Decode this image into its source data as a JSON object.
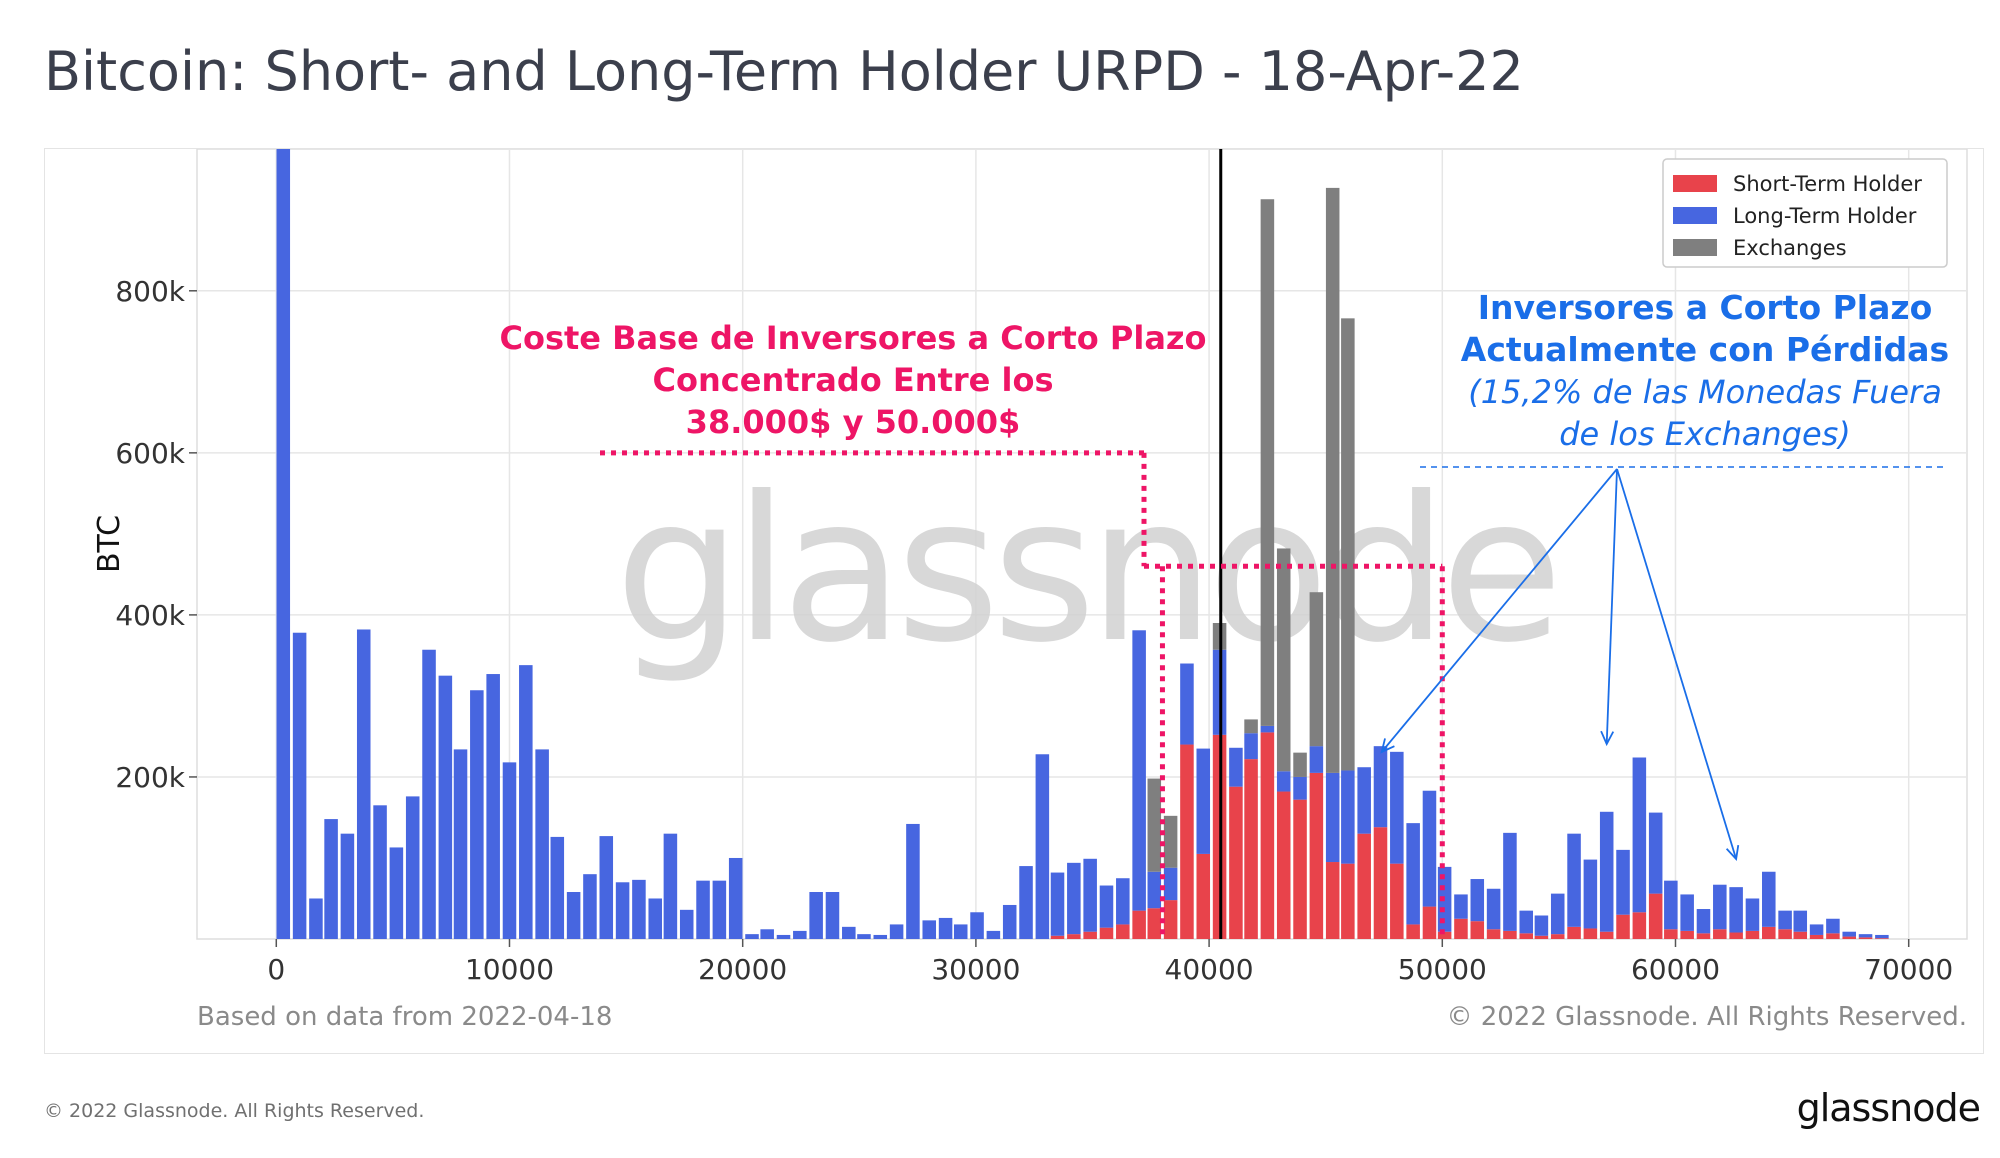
{
  "title": "Bitcoin: Short- and Long-Term Holder URPD - 18-Apr-22",
  "footer": {
    "copyright": "© 2022 Glassnode. All Rights Reserved.",
    "brand": "glassnode"
  },
  "colors": {
    "sth": "#e8434b",
    "lth": "#4766e0",
    "exchanges": "#7f7f7f",
    "pink": "#ee1566",
    "blue": "#1a6ee8",
    "grid": "#e6e6e6",
    "text": "#333333"
  },
  "chart_data": {
    "type": "bar",
    "stacked": true,
    "title": "Bitcoin: Short- and Long-Term Holder URPD - 18-Apr-22",
    "xlabel": "",
    "ylabel": "BTC",
    "xlim": [
      -3400,
      72500
    ],
    "ylim": [
      0,
      975000
    ],
    "x_ticks": [
      0,
      10000,
      20000,
      30000,
      40000,
      50000,
      60000,
      70000
    ],
    "y_ticks": [
      200000,
      400000,
      600000,
      800000
    ],
    "y_tick_labels": [
      "200k",
      "400k",
      "600k",
      "800k"
    ],
    "grid": true,
    "legend_position": "top-right",
    "watermark": "glassnode",
    "note_left": "Based on data from 2022-04-18",
    "note_right": "© 2022 Glassnode. All Rights Reserved.",
    "current_price": 40500,
    "bin_width": 675,
    "series": [
      {
        "name": "Short-Term Holder",
        "color": "#e8434b"
      },
      {
        "name": "Long-Term Holder",
        "color": "#4766e0"
      },
      {
        "name": "Exchanges",
        "color": "#7f7f7f"
      }
    ],
    "bins": [
      {
        "x": 300,
        "sth": 0,
        "lth": 975000,
        "exch": 0
      },
      {
        "x": 1000,
        "sth": 0,
        "lth": 378000,
        "exch": 0
      },
      {
        "x": 1700,
        "sth": 0,
        "lth": 50000,
        "exch": 0
      },
      {
        "x": 2350,
        "sth": 0,
        "lth": 148000,
        "exch": 0
      },
      {
        "x": 3050,
        "sth": 0,
        "lth": 130000,
        "exch": 0
      },
      {
        "x": 3750,
        "sth": 0,
        "lth": 382000,
        "exch": 0
      },
      {
        "x": 4450,
        "sth": 0,
        "lth": 165000,
        "exch": 0
      },
      {
        "x": 5150,
        "sth": 0,
        "lth": 113000,
        "exch": 0
      },
      {
        "x": 5850,
        "sth": 0,
        "lth": 176000,
        "exch": 0
      },
      {
        "x": 6550,
        "sth": 0,
        "lth": 357000,
        "exch": 0
      },
      {
        "x": 7250,
        "sth": 0,
        "lth": 325000,
        "exch": 0
      },
      {
        "x": 7900,
        "sth": 0,
        "lth": 234000,
        "exch": 0
      },
      {
        "x": 8600,
        "sth": 0,
        "lth": 307000,
        "exch": 0
      },
      {
        "x": 9300,
        "sth": 0,
        "lth": 327000,
        "exch": 0
      },
      {
        "x": 10000,
        "sth": 0,
        "lth": 218000,
        "exch": 0
      },
      {
        "x": 10700,
        "sth": 0,
        "lth": 338000,
        "exch": 0
      },
      {
        "x": 11400,
        "sth": 0,
        "lth": 234000,
        "exch": 0
      },
      {
        "x": 12050,
        "sth": 0,
        "lth": 126000,
        "exch": 0
      },
      {
        "x": 12750,
        "sth": 0,
        "lth": 58000,
        "exch": 0
      },
      {
        "x": 13450,
        "sth": 0,
        "lth": 80000,
        "exch": 0
      },
      {
        "x": 14150,
        "sth": 0,
        "lth": 127000,
        "exch": 0
      },
      {
        "x": 14850,
        "sth": 0,
        "lth": 70000,
        "exch": 0
      },
      {
        "x": 15550,
        "sth": 0,
        "lth": 73000,
        "exch": 0
      },
      {
        "x": 16250,
        "sth": 0,
        "lth": 50000,
        "exch": 0
      },
      {
        "x": 16900,
        "sth": 0,
        "lth": 130000,
        "exch": 0
      },
      {
        "x": 17600,
        "sth": 0,
        "lth": 36000,
        "exch": 0
      },
      {
        "x": 18300,
        "sth": 0,
        "lth": 72000,
        "exch": 0
      },
      {
        "x": 19000,
        "sth": 0,
        "lth": 72000,
        "exch": 0
      },
      {
        "x": 19700,
        "sth": 0,
        "lth": 100000,
        "exch": 0
      },
      {
        "x": 20400,
        "sth": 0,
        "lth": 6000,
        "exch": 0
      },
      {
        "x": 21050,
        "sth": 0,
        "lth": 12000,
        "exch": 0
      },
      {
        "x": 21750,
        "sth": 0,
        "lth": 5000,
        "exch": 0
      },
      {
        "x": 22450,
        "sth": 0,
        "lth": 10000,
        "exch": 0
      },
      {
        "x": 23150,
        "sth": 0,
        "lth": 58000,
        "exch": 0
      },
      {
        "x": 23850,
        "sth": 0,
        "lth": 58000,
        "exch": 0
      },
      {
        "x": 24550,
        "sth": 0,
        "lth": 15000,
        "exch": 0
      },
      {
        "x": 25200,
        "sth": 0,
        "lth": 6000,
        "exch": 0
      },
      {
        "x": 25900,
        "sth": 0,
        "lth": 5000,
        "exch": 0
      },
      {
        "x": 26600,
        "sth": 0,
        "lth": 18000,
        "exch": 0
      },
      {
        "x": 27300,
        "sth": 0,
        "lth": 142000,
        "exch": 0
      },
      {
        "x": 28000,
        "sth": 0,
        "lth": 23000,
        "exch": 0
      },
      {
        "x": 28700,
        "sth": 0,
        "lth": 26000,
        "exch": 0
      },
      {
        "x": 29350,
        "sth": 0,
        "lth": 18000,
        "exch": 0
      },
      {
        "x": 30050,
        "sth": 0,
        "lth": 33000,
        "exch": 0
      },
      {
        "x": 30750,
        "sth": 0,
        "lth": 10000,
        "exch": 0
      },
      {
        "x": 31450,
        "sth": 0,
        "lth": 42000,
        "exch": 0
      },
      {
        "x": 32150,
        "sth": 0,
        "lth": 90000,
        "exch": 0
      },
      {
        "x": 32850,
        "sth": 0,
        "lth": 228000,
        "exch": 0
      },
      {
        "x": 33500,
        "sth": 4000,
        "lth": 78000,
        "exch": 0
      },
      {
        "x": 34200,
        "sth": 6000,
        "lth": 88000,
        "exch": 0
      },
      {
        "x": 34900,
        "sth": 9000,
        "lth": 90000,
        "exch": 0
      },
      {
        "x": 35600,
        "sth": 14000,
        "lth": 52000,
        "exch": 0
      },
      {
        "x": 36300,
        "sth": 18000,
        "lth": 57000,
        "exch": 0
      },
      {
        "x": 37000,
        "sth": 35000,
        "lth": 346000,
        "exch": 0
      },
      {
        "x": 37650,
        "sth": 38000,
        "lth": 45000,
        "exch": 115000
      },
      {
        "x": 38350,
        "sth": 48000,
        "lth": 40000,
        "exch": 64000
      },
      {
        "x": 39050,
        "sth": 240000,
        "lth": 100000,
        "exch": 0
      },
      {
        "x": 39750,
        "sth": 105000,
        "lth": 130000,
        "exch": 0
      },
      {
        "x": 40450,
        "sth": 252000,
        "lth": 105000,
        "exch": 33000
      },
      {
        "x": 41150,
        "sth": 188000,
        "lth": 48000,
        "exch": 0
      },
      {
        "x": 41800,
        "sth": 222000,
        "lth": 32000,
        "exch": 17000
      },
      {
        "x": 42500,
        "sth": 255000,
        "lth": 8000,
        "exch": 650000
      },
      {
        "x": 43200,
        "sth": 182000,
        "lth": 25000,
        "exch": 275000
      },
      {
        "x": 43900,
        "sth": 172000,
        "lth": 28000,
        "exch": 30000
      },
      {
        "x": 44600,
        "sth": 205000,
        "lth": 33000,
        "exch": 190000
      },
      {
        "x": 45300,
        "sth": 95000,
        "lth": 110000,
        "exch": 722000
      },
      {
        "x": 45950,
        "sth": 93000,
        "lth": 115000,
        "exch": 558000
      },
      {
        "x": 46650,
        "sth": 130000,
        "lth": 82000,
        "exch": 0
      },
      {
        "x": 47350,
        "sth": 138000,
        "lth": 100000,
        "exch": 0
      },
      {
        "x": 48050,
        "sth": 93000,
        "lth": 138000,
        "exch": 0
      },
      {
        "x": 48750,
        "sth": 18000,
        "lth": 125000,
        "exch": 0
      },
      {
        "x": 49450,
        "sth": 40000,
        "lth": 143000,
        "exch": 0
      },
      {
        "x": 50100,
        "sth": 9000,
        "lth": 80000,
        "exch": 0
      },
      {
        "x": 50800,
        "sth": 25000,
        "lth": 30000,
        "exch": 0
      },
      {
        "x": 51500,
        "sth": 22000,
        "lth": 52000,
        "exch": 0
      },
      {
        "x": 52200,
        "sth": 12000,
        "lth": 50000,
        "exch": 0
      },
      {
        "x": 52900,
        "sth": 10000,
        "lth": 121000,
        "exch": 0
      },
      {
        "x": 53600,
        "sth": 7000,
        "lth": 28000,
        "exch": 0
      },
      {
        "x": 54250,
        "sth": 4000,
        "lth": 25000,
        "exch": 0
      },
      {
        "x": 54950,
        "sth": 6000,
        "lth": 50000,
        "exch": 0
      },
      {
        "x": 55650,
        "sth": 15000,
        "lth": 115000,
        "exch": 0
      },
      {
        "x": 56350,
        "sth": 13000,
        "lth": 85000,
        "exch": 0
      },
      {
        "x": 57050,
        "sth": 9000,
        "lth": 148000,
        "exch": 0
      },
      {
        "x": 57750,
        "sth": 30000,
        "lth": 80000,
        "exch": 0
      },
      {
        "x": 58450,
        "sth": 33000,
        "lth": 191000,
        "exch": 0
      },
      {
        "x": 59150,
        "sth": 56000,
        "lth": 100000,
        "exch": 0
      },
      {
        "x": 59800,
        "sth": 12000,
        "lth": 60000,
        "exch": 0
      },
      {
        "x": 60500,
        "sth": 10000,
        "lth": 45000,
        "exch": 0
      },
      {
        "x": 61200,
        "sth": 7000,
        "lth": 30000,
        "exch": 0
      },
      {
        "x": 61900,
        "sth": 12000,
        "lth": 55000,
        "exch": 0
      },
      {
        "x": 62600,
        "sth": 8000,
        "lth": 56000,
        "exch": 0
      },
      {
        "x": 63300,
        "sth": 10000,
        "lth": 40000,
        "exch": 0
      },
      {
        "x": 64000,
        "sth": 15000,
        "lth": 68000,
        "exch": 0
      },
      {
        "x": 64700,
        "sth": 12000,
        "lth": 23000,
        "exch": 0
      },
      {
        "x": 65350,
        "sth": 9000,
        "lth": 26000,
        "exch": 0
      },
      {
        "x": 66050,
        "sth": 5000,
        "lth": 13000,
        "exch": 0
      },
      {
        "x": 66750,
        "sth": 7000,
        "lth": 18000,
        "exch": 0
      },
      {
        "x": 67450,
        "sth": 3000,
        "lth": 6000,
        "exch": 0
      },
      {
        "x": 68150,
        "sth": 2000,
        "lth": 4000,
        "exch": 0
      },
      {
        "x": 68850,
        "sth": 1000,
        "lth": 4000,
        "exch": 0
      }
    ],
    "annotations": {
      "pink_lines": [
        "Coste Base de Inversores a Corto Plazo",
        "Concentrado Entre los",
        "38.000$ y 50.000$"
      ],
      "blue_bold_lines": [
        "Inversores a Corto Plazo",
        "Actualmente con Pérdidas"
      ],
      "blue_italic_lines": [
        "(15,2% de las Monedas Fuera",
        "de los Exchanges)"
      ],
      "range_start": 38000,
      "range_end": 50000,
      "arrow_targets": [
        47400,
        57050,
        62600
      ]
    }
  }
}
